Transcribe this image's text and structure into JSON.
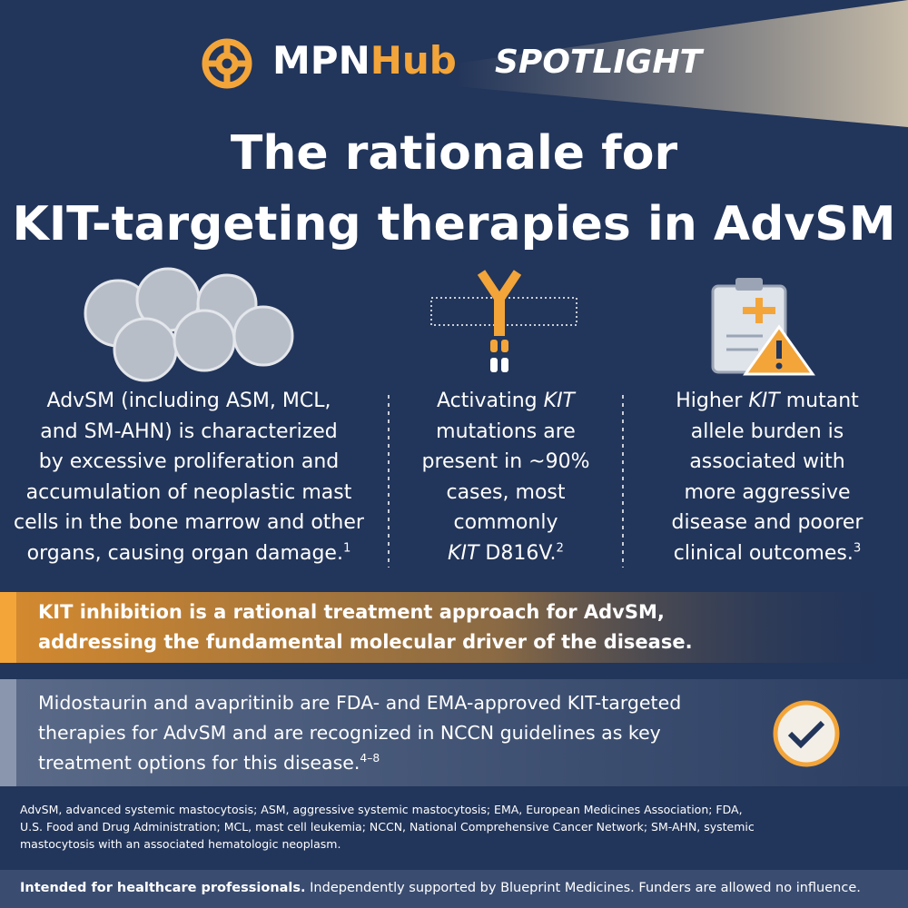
{
  "header": {
    "logo_left": "MPN",
    "logo_right": "Hub",
    "tag": "SPOTLIGHT"
  },
  "title": [
    "The rationale for",
    "KIT-targeting therapies in AdvSM"
  ],
  "columns": [
    {
      "lines": [
        [
          {
            "text": "AdvSM (including ASM, MCL,"
          }
        ],
        [
          {
            "text": "and SM-AHN) is characterized"
          }
        ],
        [
          {
            "text": "by excessive proliferation and"
          }
        ],
        [
          {
            "text": "accumulation of neoplastic mast"
          }
        ],
        [
          {
            "text": "cells in the bone marrow and other"
          }
        ],
        [
          {
            "text": "organs, causing organ damage."
          },
          {
            "text": "1",
            "style": "sup"
          }
        ]
      ]
    },
    {
      "lines": [
        [
          {
            "text": "Activating "
          },
          {
            "text": "KIT",
            "style": "italic"
          }
        ],
        [
          {
            "text": "mutations are"
          }
        ],
        [
          {
            "text": "present in ~90%"
          }
        ],
        [
          {
            "text": "cases, most"
          }
        ],
        [
          {
            "text": "commonly"
          }
        ],
        [
          {
            "text": "KIT",
            "style": "italic"
          },
          {
            "text": " D816V."
          },
          {
            "text": "2",
            "style": "sup"
          }
        ]
      ]
    },
    {
      "lines": [
        [
          {
            "text": "Higher "
          },
          {
            "text": "KIT",
            "style": "italic"
          },
          {
            "text": " mutant"
          }
        ],
        [
          {
            "text": "allele burden is"
          }
        ],
        [
          {
            "text": "associated with"
          }
        ],
        [
          {
            "text": "more aggressive"
          }
        ],
        [
          {
            "text": "disease and poorer"
          }
        ],
        [
          {
            "text": "clinical outcomes."
          },
          {
            "text": "3",
            "style": "sup"
          }
        ]
      ]
    }
  ],
  "banner": {
    "lines": [
      [
        {
          "text": "KIT inhibition is a rational treatment approach for AdvSM,"
        }
      ],
      [
        {
          "text": "addressing the fundamental molecular driver of the disease."
        }
      ]
    ]
  },
  "approval": {
    "lines": [
      [
        {
          "text": "Midostaurin and avapritinib are FDA- and EMA-approved KIT-targeted"
        }
      ],
      [
        {
          "text": "therapies for AdvSM and are recognized in NCCN guidelines as key"
        }
      ],
      [
        {
          "text": "treatment options for this disease."
        },
        {
          "text": "4–8",
          "style": "sup"
        }
      ]
    ]
  },
  "footnote": {
    "lines": [
      [
        {
          "text": "AdvSM, advanced systemic mastocytosis; ASM, aggressive systemic mastocytosis; EMA, European Medicines Association; FDA,"
        }
      ],
      [
        {
          "text": "U.S. Food and Drug Administration; MCL, mast cell leukemia; NCCN, National Comprehensive Cancer Network; SM-AHN, systemic"
        }
      ],
      [
        {
          "text": "mastocytosis with an associated hematologic neoplasm."
        }
      ]
    ]
  },
  "footer": {
    "lines": [
      [
        {
          "text": "Intended for healthcare professionals.",
          "style": "bold"
        },
        {
          "text": " Independently supported by Blueprint Medicines. Funders are allowed no influence."
        }
      ]
    ]
  }
}
